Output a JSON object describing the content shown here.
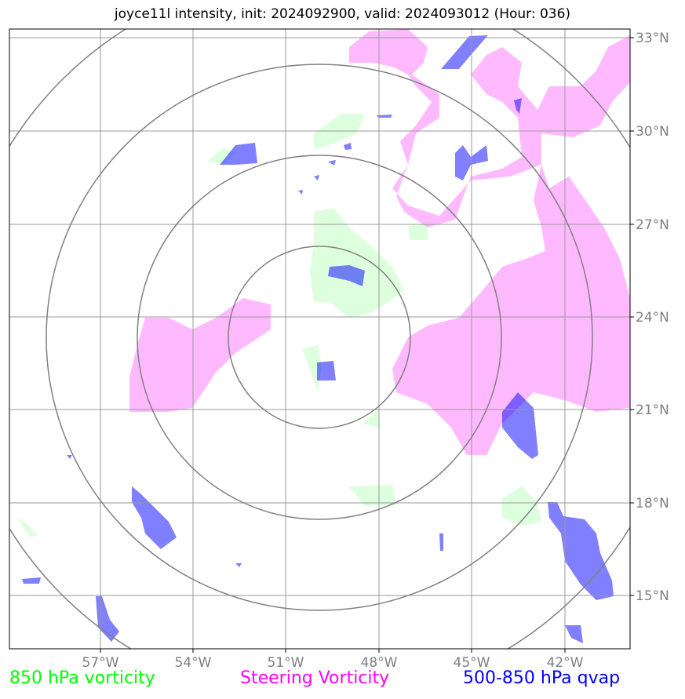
{
  "title": "joyce11l intensity, init: 2024092900, valid: 2024093012 (Hour: 036)",
  "map": {
    "lon_range": [
      -59.8,
      -39.8
    ],
    "lat_range": [
      13.3,
      33.3
    ],
    "lon_ticks": [
      -57,
      -54,
      -51,
      -48,
      -45,
      -42
    ],
    "lon_tick_labels": [
      "57°W",
      "54°W",
      "51°W",
      "48°W",
      "45°W",
      "42°W"
    ],
    "lat_ticks": [
      15,
      18,
      21,
      24,
      27,
      30,
      33
    ],
    "lat_tick_labels": [
      "15°N",
      "18°N",
      "21°N",
      "24°N",
      "27°N",
      "30°N",
      "33°N"
    ],
    "grid": true,
    "range_rings": {
      "center": [
        -49.9,
        23.4
      ],
      "count": 4
    }
  },
  "layers": [
    {
      "name": "850 hPa vorticity",
      "color": "#00ff00"
    },
    {
      "name": "Steering Vorticity",
      "color": "#ff00ff"
    },
    {
      "name": "500-850 hPa qvap",
      "color": "#0000ff"
    }
  ],
  "legend": {
    "vort850": "850 hPa vorticity",
    "steering": "Steering Vorticity",
    "qvap": "500-850 hPa qvap"
  }
}
